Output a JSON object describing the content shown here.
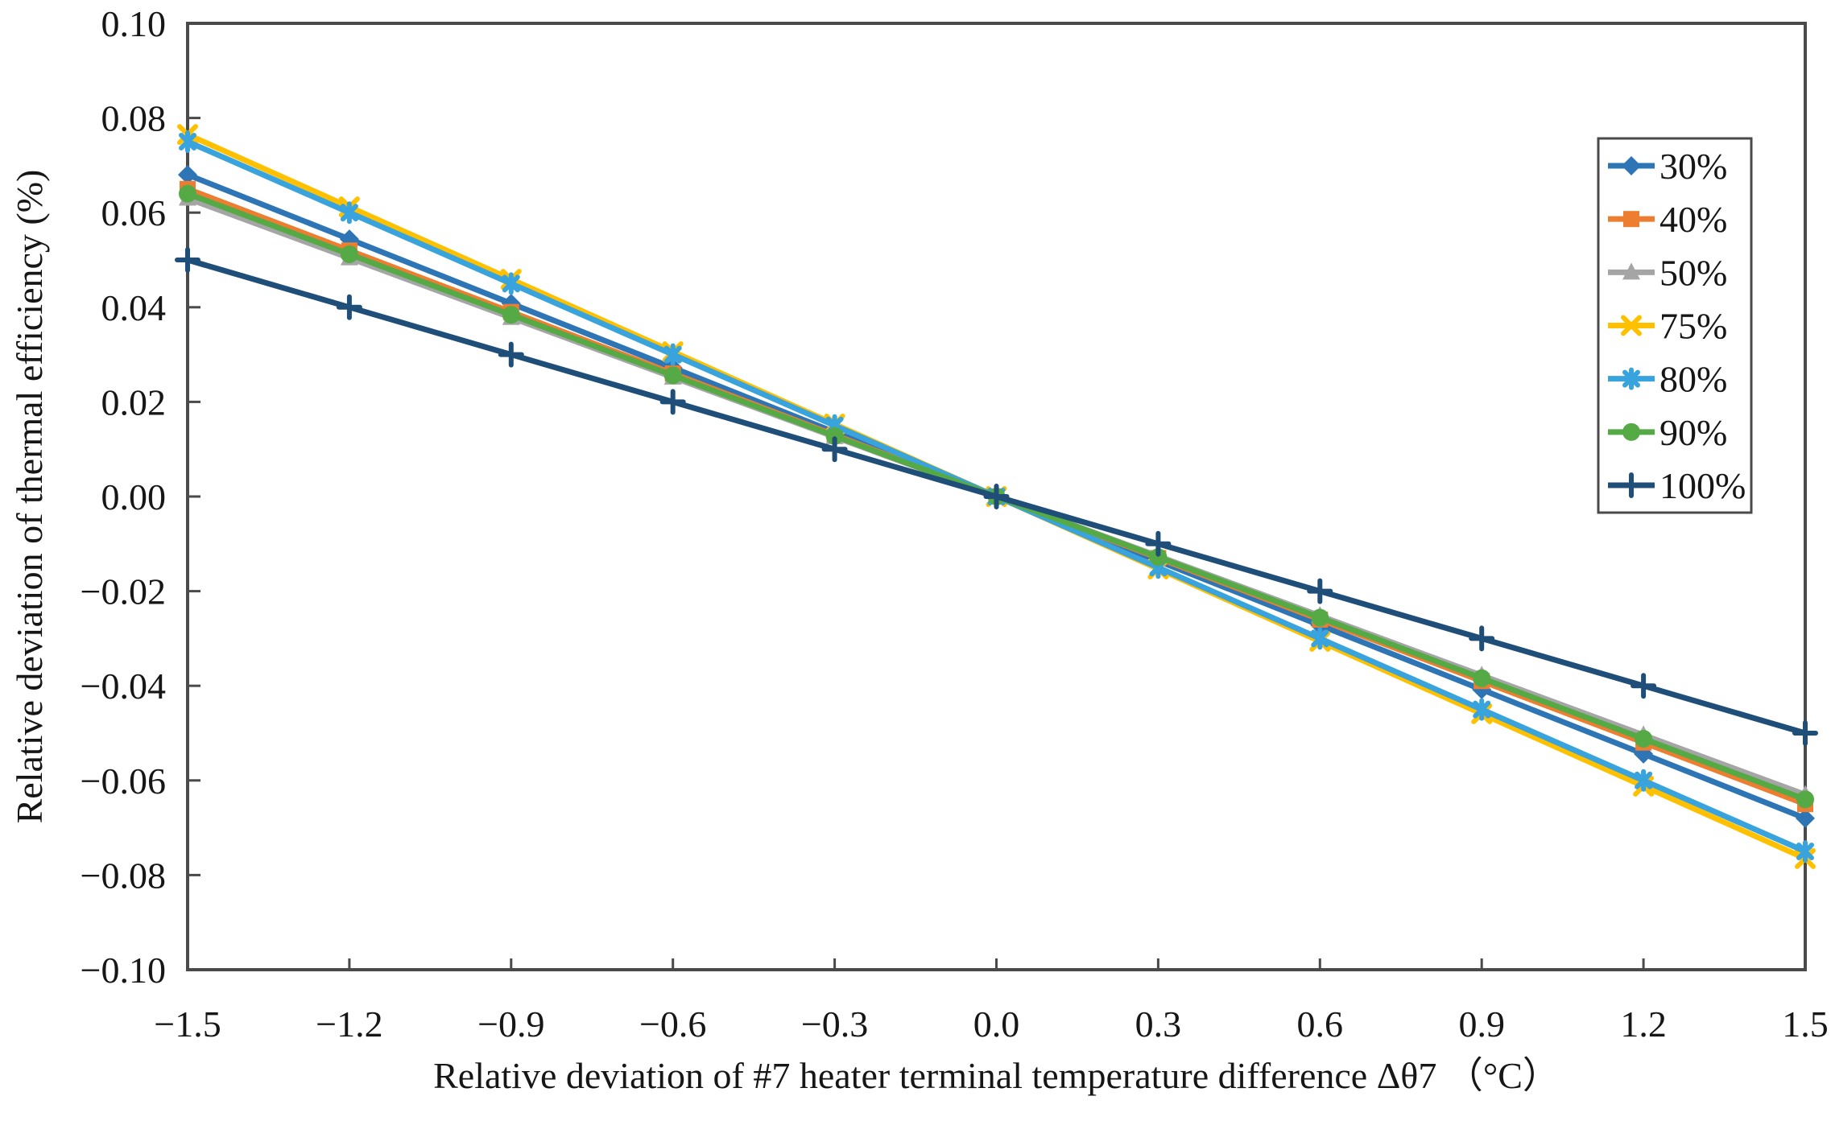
{
  "figure": {
    "background": "#ffffff",
    "axis_color": "#4a4a4a",
    "text_color": "#161616"
  },
  "chart_data": {
    "type": "line",
    "title": "",
    "xlabel": "Relative deviation of #7 heater terminal temperature difference Δθ7 （°C）",
    "ylabel": "Relative deviation of thermal efficiency (%)",
    "xlim": [
      -1.5,
      1.5
    ],
    "ylim": [
      -0.1,
      0.1
    ],
    "grid": false,
    "legend_position": "inside-upper-right",
    "x": [
      -1.5,
      -1.2,
      -0.9,
      -0.6,
      -0.3,
      0.0,
      0.3,
      0.6,
      0.9,
      1.2,
      1.5
    ],
    "x_tick_labels": [
      "−1.5",
      "−1.2",
      "−0.9",
      "−0.6",
      "−0.3",
      "0.0",
      "0.3",
      "0.6",
      "0.9",
      "1.2",
      "1.5"
    ],
    "y_ticks": [
      0.1,
      0.08,
      0.06,
      0.04,
      0.02,
      0.0,
      -0.02,
      -0.04,
      -0.06,
      -0.08,
      -0.1
    ],
    "y_tick_labels": [
      "0.10",
      "0.08",
      "0.06",
      "0.04",
      "0.02",
      "0.00",
      "−0.02",
      "−0.04",
      "−0.06",
      "−0.08",
      "−0.10"
    ],
    "series": [
      {
        "name": "30%",
        "color": "#2E75B6",
        "marker": "diamond",
        "values": [
          0.068,
          0.0544,
          0.0408,
          0.0272,
          0.0136,
          0.0,
          -0.0136,
          -0.0272,
          -0.0408,
          -0.0544,
          -0.068
        ]
      },
      {
        "name": "40%",
        "color": "#ED7D31",
        "marker": "square",
        "values": [
          0.065,
          0.052,
          0.039,
          0.026,
          0.013,
          0.0,
          -0.013,
          -0.026,
          -0.039,
          -0.052,
          -0.065
        ]
      },
      {
        "name": "50%",
        "color": "#A5A5A5",
        "marker": "triangle",
        "values": [
          0.063,
          0.0504,
          0.0378,
          0.0252,
          0.0126,
          0.0,
          -0.0126,
          -0.0252,
          -0.0378,
          -0.0504,
          -0.063
        ]
      },
      {
        "name": "75%",
        "color": "#FFC000",
        "marker": "x",
        "values": [
          0.0765,
          0.0612,
          0.0459,
          0.0306,
          0.0153,
          0.0,
          -0.0153,
          -0.0306,
          -0.0459,
          -0.0612,
          -0.0765
        ]
      },
      {
        "name": "80%",
        "color": "#38A3DC",
        "marker": "asterisk",
        "values": [
          0.075,
          0.06,
          0.045,
          0.03,
          0.015,
          0.0,
          -0.015,
          -0.03,
          -0.045,
          -0.06,
          -0.075
        ]
      },
      {
        "name": "90%",
        "color": "#55AA46",
        "marker": "circle",
        "values": [
          0.064,
          0.0512,
          0.0384,
          0.0256,
          0.0128,
          0.0,
          -0.0128,
          -0.0256,
          -0.0384,
          -0.0512,
          -0.064
        ]
      },
      {
        "name": "100%",
        "color": "#1F4E79",
        "marker": "plus",
        "values": [
          0.05,
          0.04,
          0.03,
          0.02,
          0.01,
          0.0,
          -0.01,
          -0.02,
          -0.03,
          -0.04,
          -0.05
        ]
      }
    ]
  }
}
